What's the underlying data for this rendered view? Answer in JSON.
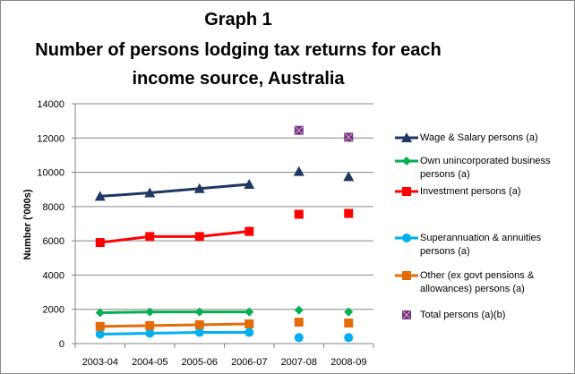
{
  "chart_data": {
    "type": "line",
    "title": [
      "Graph 1",
      "Number of persons lodging tax returns for each",
      "income source, Australia"
    ],
    "xlabel": "",
    "ylabel": "Number ('000s)",
    "ylim": [
      0,
      14000
    ],
    "yticks": [
      "0",
      "2000",
      "4000",
      "6000",
      "8000",
      "10000",
      "12000",
      "14000"
    ],
    "categories": [
      "2003-04",
      "2004-05",
      "2005-06",
      "2006-07",
      "2007-08",
      "2008-09"
    ],
    "grid": true,
    "legend_position": "right",
    "line_break_after_index": 3,
    "series": [
      {
        "name": "Wage & Salary persons (a)",
        "color": "#1F3864",
        "marker": "triangle",
        "values": [
          8600,
          8800,
          9050,
          9300,
          10050,
          9750
        ]
      },
      {
        "name": "Own unincorporated business persons (a)",
        "color": "#00B050",
        "marker": "diamond",
        "values": [
          1800,
          1850,
          1850,
          1850,
          1950,
          1850
        ]
      },
      {
        "name": "Investment persons (a)",
        "color": "#FF0000",
        "marker": "square",
        "values": [
          5900,
          6250,
          6250,
          6550,
          7550,
          7600
        ]
      },
      {
        "name": "Superannuation & annuities persons (a)",
        "color": "#00B0F0",
        "marker": "circle",
        "values": [
          550,
          600,
          650,
          650,
          350,
          350
        ]
      },
      {
        "name": "Other (ex govt pensions & allowances) persons (a)",
        "color": "#E36C09",
        "marker": "square",
        "values": [
          1000,
          1050,
          1100,
          1150,
          1250,
          1200
        ]
      },
      {
        "name": "Total persons (a)(b)",
        "color": "#7030A0",
        "marker": "xbox",
        "values": [
          null,
          null,
          null,
          null,
          12450,
          12050
        ]
      }
    ]
  }
}
